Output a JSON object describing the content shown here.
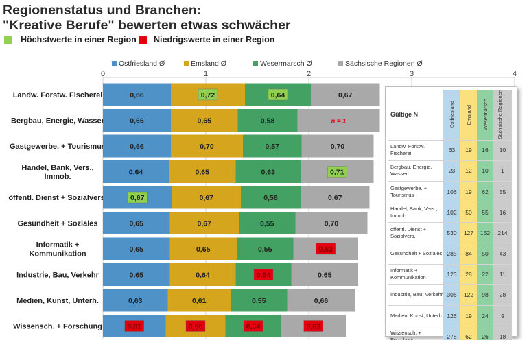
{
  "title_line1": "Regionenstatus und Branchen:",
  "title_line2": "\"Kreative Berufe\" bewerten etwas schwächer",
  "legend_marks": [
    {
      "label": "Höchstwerte in einer Region",
      "color": "#92d050"
    },
    {
      "label": "Niedrigswerte in einer Region",
      "color": "#e3000f"
    }
  ],
  "colors": [
    "#4e92c8",
    "#d4a51d",
    "#42a163",
    "#a9a9a9"
  ],
  "chart_data": {
    "type": "bar",
    "orientation": "horizontal",
    "stacked": true,
    "xlim": [
      0,
      4
    ],
    "x_ticks": [
      0,
      1,
      2,
      3,
      4
    ],
    "grid": true,
    "legend_position": "top",
    "categories": [
      "Landw. Forstw. Fischerei",
      "Bergbau, Energie, Wasser",
      "Gastgewerbe. + Tourismus",
      "Handel, Bank, Vers., Immob.",
      "öffentl. Dienst + Sozialvers.",
      "Gesundheit + Soziales",
      "Informatik + Kommunikation",
      "Industrie, Bau, Verkehr",
      "Medien, Kunst, Unterh.",
      "Wissensch. + Forschung"
    ],
    "series": [
      {
        "name": "Ostfriesland Ø",
        "values": [
          0.66,
          0.66,
          0.66,
          0.64,
          0.67,
          0.65,
          0.65,
          0.65,
          0.63,
          0.61
        ],
        "labels": [
          "0,66",
          "0,66",
          "0,66",
          "0,64",
          "0,67",
          "0,65",
          "0,65",
          "0,65",
          "0,63",
          "0,61"
        ]
      },
      {
        "name": "Emsland Ø",
        "values": [
          0.72,
          0.65,
          0.7,
          0.65,
          0.67,
          0.67,
          0.65,
          0.64,
          0.61,
          0.58
        ],
        "labels": [
          "0,72",
          "0,65",
          "0,70",
          "0,65",
          "0,67",
          "0,67",
          "0,65",
          "0,64",
          "0,61",
          "0,58"
        ]
      },
      {
        "name": "Wesermarsch Ø",
        "values": [
          0.64,
          0.58,
          0.57,
          0.63,
          0.58,
          0.55,
          0.55,
          0.54,
          0.55,
          0.54
        ],
        "labels": [
          "0,64",
          "0,58",
          "0,57",
          "0,63",
          "0,58",
          "0,55",
          "0,55",
          "0,54",
          "0,55",
          "0,54"
        ]
      },
      {
        "name": "Sächsische Regionen Ø",
        "values": [
          0.67,
          0.8,
          0.7,
          0.71,
          0.67,
          0.7,
          0.63,
          0.65,
          0.66,
          0.63
        ],
        "labels": [
          "0,67",
          "n = 1",
          "0,70",
          "0,71",
          "0,67",
          "0,70",
          "0,63",
          "0,65",
          "0,66",
          "0,63"
        ]
      }
    ],
    "highlights": [
      {
        "category": 0,
        "series": 1,
        "kind": "high"
      },
      {
        "category": 0,
        "series": 2,
        "kind": "high"
      },
      {
        "category": 3,
        "series": 3,
        "kind": "high"
      },
      {
        "category": 4,
        "series": 0,
        "kind": "high"
      },
      {
        "category": 6,
        "series": 3,
        "kind": "low"
      },
      {
        "category": 7,
        "series": 2,
        "kind": "low"
      },
      {
        "category": 9,
        "series": 0,
        "kind": "low"
      },
      {
        "category": 9,
        "series": 1,
        "kind": "low"
      },
      {
        "category": 9,
        "series": 2,
        "kind": "low"
      },
      {
        "category": 9,
        "series": 3,
        "kind": "low"
      }
    ],
    "special_labels": [
      {
        "category": 1,
        "series": 3,
        "text": "n = 1"
      }
    ]
  },
  "table": {
    "header_label": "Gültige N",
    "columns": [
      "Ostfriesland",
      "Emsland",
      "Wesermarsch",
      "Sächsische Regionen"
    ],
    "rows": [
      {
        "label": "Landw. Forstw. Fischerei",
        "values": [
          "63",
          "19",
          "16",
          "10"
        ]
      },
      {
        "label": "Bergbau, Energie, Wasser",
        "values": [
          "23",
          "12",
          "10",
          "1"
        ]
      },
      {
        "label": "Gastgewerbe. + Tourismus",
        "values": [
          "106",
          "19",
          "62",
          "55"
        ]
      },
      {
        "label": "Handel, Bank, Vers., Immob.",
        "values": [
          "102",
          "50",
          "55",
          "16"
        ]
      },
      {
        "label": "öffentl. Dienst + Sozialvers.",
        "values": [
          "530",
          "127",
          "152",
          "214"
        ]
      },
      {
        "label": "Gesundheit + Soziales",
        "values": [
          "285",
          "84",
          "50",
          "43"
        ]
      },
      {
        "label": "Informatik + Kommunikation",
        "values": [
          "123",
          "28",
          "22",
          "11"
        ]
      },
      {
        "label": "Industrie, Bau, Verkehr",
        "values": [
          "306",
          "122",
          "98",
          "28"
        ]
      },
      {
        "label": "Medien, Kunst, Unterh.",
        "values": [
          "126",
          "19",
          "24",
          "9"
        ]
      },
      {
        "label": "Wissensch. + Forschung",
        "values": [
          "278",
          "62",
          "26",
          "18"
        ]
      }
    ]
  }
}
